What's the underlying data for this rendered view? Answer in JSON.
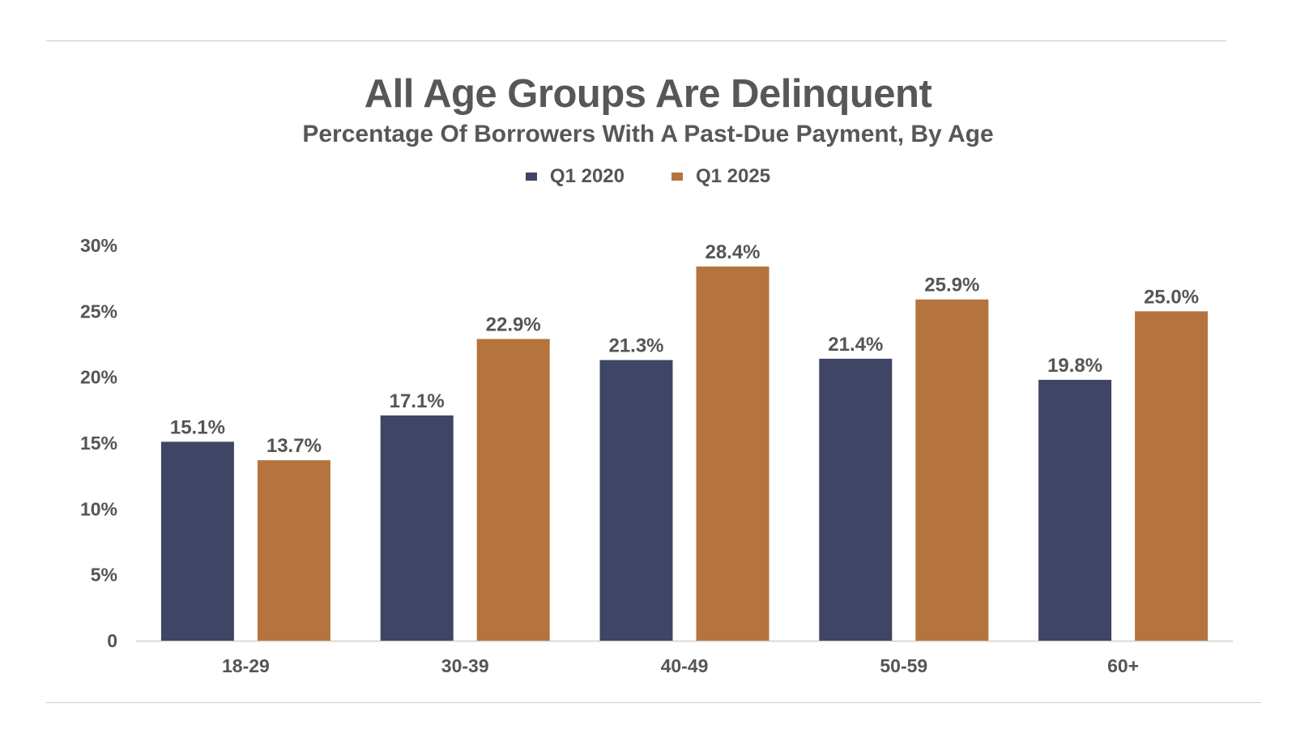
{
  "chart_data": {
    "type": "bar",
    "title": "All Age Groups Are Delinquent",
    "subtitle": "Percentage Of Borrowers With A Past-Due Payment, By Age",
    "categories": [
      "18-29",
      "30-39",
      "40-49",
      "50-59",
      "60+"
    ],
    "series": [
      {
        "name": "Q1 2020",
        "color": "#3e4565",
        "values": [
          15.1,
          17.1,
          21.3,
          21.4,
          19.8
        ]
      },
      {
        "name": "Q1 2025",
        "color": "#b5743e",
        "values": [
          13.7,
          22.9,
          28.4,
          25.9,
          25.0
        ]
      }
    ],
    "data_labels": [
      [
        "15.1%",
        "17.1%",
        "21.3%",
        "21.4%",
        "19.8%"
      ],
      [
        "13.7%",
        "22.9%",
        "28.4%",
        "25.9%",
        "25.0%"
      ]
    ],
    "ylim": [
      0,
      30
    ],
    "yticks": [
      0,
      5,
      10,
      15,
      20,
      25,
      30
    ],
    "ytick_labels": [
      "0",
      "5%",
      "10%",
      "15%",
      "20%",
      "25%",
      "30%"
    ],
    "xlabel": "",
    "ylabel": "",
    "grid": false,
    "legend_position": "top-center"
  }
}
